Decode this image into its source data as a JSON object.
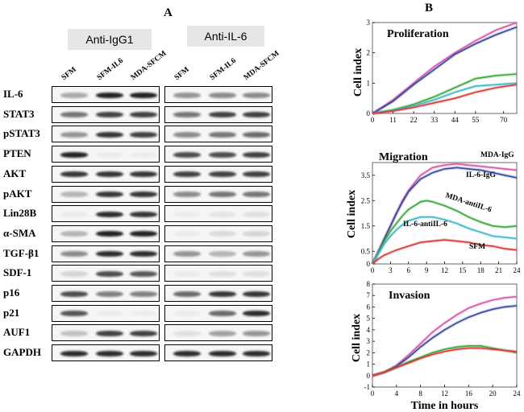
{
  "panel_a": {
    "letter": "A",
    "groups": [
      {
        "title": "Anti-IgG1",
        "lanes": [
          "SFM",
          "SFM-IL6",
          "MDA-SFCM"
        ]
      },
      {
        "title": "Anti-IL-6",
        "lanes": [
          "SFM",
          "SFM-IL6",
          "MDA-SFCM"
        ]
      }
    ],
    "proteins": [
      "IL-6",
      "STAT3",
      "pSTAT3",
      "PTEN",
      "AKT",
      "pAKT",
      "Lin28B",
      "α-SMA",
      "TGF-β1",
      "SDF-1",
      "p16",
      "p21",
      "AUF1",
      "GAPDH"
    ],
    "band_intensity_note_scale": "0-1",
    "bands": {
      "igg": [
        [
          0.35,
          1.0,
          1.0
        ],
        [
          0.6,
          0.85,
          0.85
        ],
        [
          0.45,
          0.9,
          0.85
        ],
        [
          1.0,
          0.05,
          0.03
        ],
        [
          0.9,
          0.9,
          0.9
        ],
        [
          0.3,
          0.9,
          0.9
        ],
        [
          0.05,
          0.95,
          0.9
        ],
        [
          0.3,
          1.0,
          1.0
        ],
        [
          0.5,
          0.95,
          0.95
        ],
        [
          0.15,
          0.8,
          0.75
        ],
        [
          0.8,
          0.55,
          0.55
        ],
        [
          0.75,
          0.02,
          0.02
        ],
        [
          0.25,
          0.85,
          0.85
        ],
        [
          0.95,
          0.95,
          0.95
        ]
      ],
      "il6": [
        [
          0.45,
          0.5,
          0.5
        ],
        [
          0.6,
          0.85,
          0.85
        ],
        [
          0.5,
          0.6,
          0.65
        ],
        [
          0.8,
          0.8,
          0.85
        ],
        [
          0.85,
          0.85,
          0.85
        ],
        [
          0.5,
          0.6,
          0.6
        ],
        [
          0.03,
          0.08,
          0.1
        ],
        [
          0.05,
          0.12,
          0.15
        ],
        [
          0.45,
          0.3,
          0.45
        ],
        [
          0.05,
          0.1,
          0.1
        ],
        [
          0.65,
          0.9,
          0.9
        ],
        [
          0.05,
          0.65,
          0.95
        ],
        [
          0.1,
          0.4,
          0.45
        ],
        [
          0.95,
          0.95,
          0.95
        ]
      ]
    }
  },
  "panel_b": {
    "letter": "B",
    "ylabel": "Cell index",
    "xlabel": "Time in hours"
  },
  "chart_data": [
    {
      "type": "line",
      "title": "Proliferation",
      "ylabel": "Cell index",
      "xlim": [
        0,
        77
      ],
      "ylim": [
        0,
        3
      ],
      "xticks": [
        0,
        11,
        22,
        33,
        44,
        55,
        70
      ],
      "yticks": [
        0,
        1,
        2,
        3
      ],
      "colors": [
        "#d65aa8",
        "#3848a0",
        "#3aa83a",
        "#40b8c8",
        "#d83a3a"
      ],
      "series": [
        {
          "x": [
            0,
            5,
            11,
            22,
            33,
            44,
            55,
            66,
            77
          ],
          "y": [
            0,
            0.2,
            0.45,
            1.0,
            1.55,
            2.0,
            2.4,
            2.75,
            3.0
          ]
        },
        {
          "x": [
            0,
            5,
            11,
            22,
            33,
            44,
            55,
            66,
            77
          ],
          "y": [
            0,
            0.18,
            0.4,
            0.95,
            1.45,
            1.95,
            2.3,
            2.6,
            2.85
          ]
        },
        {
          "x": [
            0,
            11,
            22,
            33,
            44,
            55,
            66,
            77
          ],
          "y": [
            0,
            0.12,
            0.3,
            0.55,
            0.85,
            1.15,
            1.25,
            1.3
          ]
        },
        {
          "x": [
            0,
            11,
            22,
            33,
            44,
            55,
            66,
            77
          ],
          "y": [
            0,
            0.1,
            0.25,
            0.45,
            0.7,
            0.9,
            0.95,
            1.0
          ]
        },
        {
          "x": [
            0,
            11,
            22,
            33,
            44,
            55,
            66,
            77
          ],
          "y": [
            0,
            0.08,
            0.2,
            0.35,
            0.5,
            0.7,
            0.85,
            0.95
          ]
        }
      ]
    },
    {
      "type": "line",
      "title": "Migration",
      "ylabel": "Cell index",
      "xlim": [
        0,
        24
      ],
      "ylim": [
        0,
        4
      ],
      "xticks": [
        0,
        3,
        6,
        9,
        12,
        15,
        18,
        21,
        24
      ],
      "yticks": [
        0,
        0.5,
        1.5,
        2.5,
        3.5
      ],
      "colors": [
        "#d65aa8",
        "#3848a0",
        "#3aa83a",
        "#40b8c8",
        "#d83a3a"
      ],
      "annotations": [
        "MDA-IgG",
        "IL-6-IgG",
        "MDA-antiIL-6",
        "IL-6-antiIL-6",
        "SFM"
      ],
      "series": [
        {
          "x": [
            0,
            1,
            2,
            3,
            4,
            5,
            6,
            7,
            8,
            10,
            12,
            14,
            16,
            18,
            20,
            22,
            24
          ],
          "y": [
            0,
            0.5,
            1.0,
            1.5,
            2.0,
            2.5,
            2.9,
            3.2,
            3.5,
            3.8,
            3.9,
            3.95,
            3.9,
            3.85,
            3.8,
            3.75,
            3.7
          ]
        },
        {
          "x": [
            0,
            1,
            2,
            3,
            4,
            5,
            6,
            7,
            8,
            10,
            12,
            14,
            16,
            18,
            20,
            22,
            24
          ],
          "y": [
            0,
            0.5,
            1.0,
            1.5,
            2.0,
            2.45,
            2.85,
            3.1,
            3.35,
            3.6,
            3.75,
            3.8,
            3.75,
            3.7,
            3.6,
            3.5,
            3.4
          ]
        },
        {
          "x": [
            0,
            1,
            2,
            3,
            4,
            5,
            6,
            8,
            9,
            10,
            12,
            14,
            16,
            18,
            20,
            22,
            24
          ],
          "y": [
            0,
            0.45,
            0.9,
            1.3,
            1.6,
            1.9,
            2.15,
            2.45,
            2.5,
            2.45,
            2.3,
            2.1,
            1.85,
            1.65,
            1.5,
            1.45,
            1.5
          ]
        },
        {
          "x": [
            0,
            1,
            2,
            3,
            4,
            5,
            6,
            8,
            10,
            12,
            14,
            16,
            18,
            20,
            22,
            24
          ],
          "y": [
            0,
            0.4,
            0.8,
            1.1,
            1.35,
            1.55,
            1.7,
            1.85,
            1.85,
            1.75,
            1.6,
            1.4,
            1.25,
            1.1,
            1.05,
            1.0
          ]
        },
        {
          "x": [
            0,
            1,
            2,
            3,
            4,
            6,
            8,
            10,
            12,
            14,
            16,
            18,
            20,
            22,
            24
          ],
          "y": [
            0,
            0.2,
            0.35,
            0.45,
            0.55,
            0.7,
            0.85,
            0.9,
            0.95,
            0.9,
            0.85,
            0.75,
            0.7,
            0.6,
            0.55
          ]
        }
      ]
    },
    {
      "type": "line",
      "title": "Invasion",
      "ylabel": "Cell index",
      "xlabel": "Time in hours",
      "xlim": [
        0,
        24
      ],
      "ylim": [
        -1,
        8
      ],
      "xticks": [
        0,
        4,
        8,
        12,
        16,
        20,
        24
      ],
      "yticks": [
        -1,
        0,
        1,
        2,
        3,
        4,
        5,
        6,
        7,
        8
      ],
      "colors": [
        "#d65aa8",
        "#3848a0",
        "#3aa83a",
        "#d83a3a"
      ],
      "series": [
        {
          "x": [
            0,
            2,
            4,
            6,
            8,
            10,
            12,
            14,
            16,
            18,
            20,
            22,
            24
          ],
          "y": [
            0,
            0.3,
            0.9,
            1.8,
            2.8,
            3.8,
            4.6,
            5.3,
            5.9,
            6.3,
            6.6,
            6.8,
            6.9
          ]
        },
        {
          "x": [
            0,
            2,
            4,
            6,
            8,
            10,
            12,
            14,
            16,
            18,
            20,
            22,
            24
          ],
          "y": [
            0,
            0.3,
            0.8,
            1.6,
            2.5,
            3.3,
            4.0,
            4.6,
            5.1,
            5.5,
            5.8,
            6.0,
            6.1
          ]
        },
        {
          "x": [
            0,
            2,
            4,
            6,
            8,
            10,
            12,
            14,
            16,
            18,
            20,
            22,
            24
          ],
          "y": [
            0,
            0.3,
            0.7,
            1.2,
            1.6,
            2.0,
            2.3,
            2.5,
            2.6,
            2.6,
            2.4,
            2.2,
            2.0
          ]
        },
        {
          "x": [
            0,
            2,
            4,
            6,
            8,
            10,
            12,
            14,
            16,
            18,
            20,
            22,
            24
          ],
          "y": [
            0,
            0.3,
            0.7,
            1.1,
            1.5,
            1.85,
            2.1,
            2.3,
            2.4,
            2.4,
            2.3,
            2.2,
            2.1
          ]
        }
      ]
    }
  ]
}
